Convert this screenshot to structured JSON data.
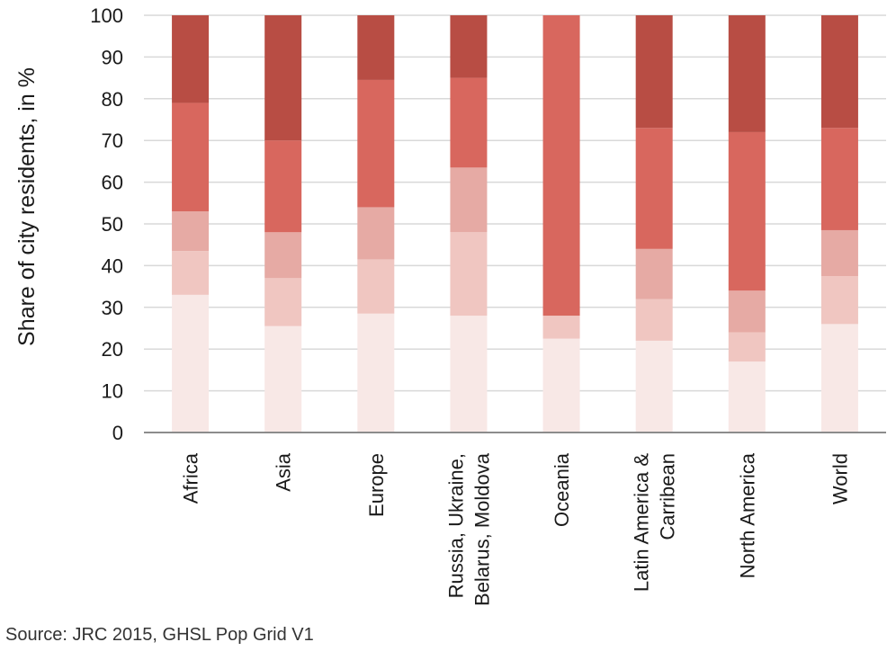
{
  "chart_data": {
    "type": "bar",
    "stacked": true,
    "title": "",
    "xlabel": "",
    "ylabel": "Share of city residents, in %",
    "ylim": [
      0,
      100
    ],
    "yticks": [
      0,
      10,
      20,
      30,
      40,
      50,
      60,
      70,
      80,
      90,
      100
    ],
    "grid": true,
    "categories": [
      [
        "Africa"
      ],
      [
        "Asia"
      ],
      [
        "Europe"
      ],
      [
        "Russia,  Ukraine,",
        "Belarus, Moldova"
      ],
      [
        "Oceania"
      ],
      [
        "Latin America &",
        "Carribean"
      ],
      [
        "North America"
      ],
      [
        "World"
      ]
    ],
    "series": [
      {
        "color": "#f8e8e6",
        "values": [
          33,
          25.5,
          28.5,
          28,
          22.5,
          22,
          17,
          26
        ]
      },
      {
        "color": "#f0c6c1",
        "values": [
          10.5,
          11.5,
          13,
          20,
          5.5,
          10,
          7,
          11.5
        ]
      },
      {
        "color": "#e6aaa4",
        "values": [
          9.5,
          11,
          12.5,
          15.5,
          0,
          12,
          10,
          11
        ]
      },
      {
        "color": "#d8675e",
        "values": [
          26,
          22,
          30.5,
          21.5,
          72,
          29,
          38,
          24.5
        ]
      },
      {
        "color": "#b84d44",
        "values": [
          21,
          30,
          15.5,
          15,
          0,
          27,
          28,
          27
        ]
      }
    ]
  },
  "source": "Source: JRC 2015, GHSL Pop Grid V1"
}
